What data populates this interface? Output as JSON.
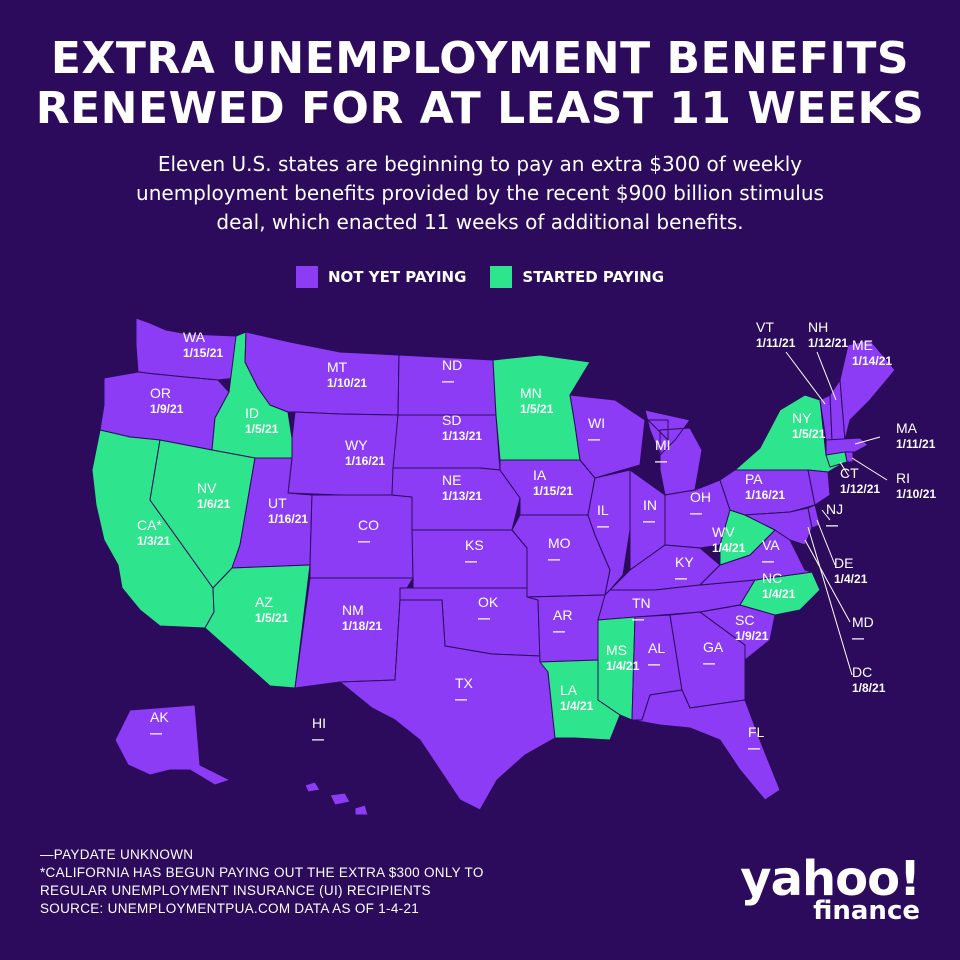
{
  "title": {
    "line1": "EXTRA UNEMPLOYMENT BENEFITS",
    "line2": "RENEWED FOR AT LEAST 11 WEEKS"
  },
  "subtitle": {
    "line1": "Eleven U.S. states are beginning to pay an extra $300 of weekly",
    "line2": "unemployment benefits provided by the recent $900 billion stimulus",
    "line3": "deal, which enacted 11 weeks of additional benefits."
  },
  "legend": {
    "not_yet_label": "NOT YET PAYING",
    "started_label": "STARTED PAYING"
  },
  "colors": {
    "background": "#2d0b5c",
    "not_yet_paying": "#8c3cf5",
    "started_paying": "#2ee58e",
    "border": "#2d0b5c",
    "text": "#ffffff"
  },
  "states": {
    "WA": {
      "name": "WA",
      "date": "1/15/21",
      "status": "not_yet"
    },
    "OR": {
      "name": "OR",
      "date": "1/9/21",
      "status": "not_yet"
    },
    "CA": {
      "name": "CA*",
      "date": "1/3/21",
      "status": "started"
    },
    "ID": {
      "name": "ID",
      "date": "1/5/21",
      "status": "started"
    },
    "NV": {
      "name": "NV",
      "date": "1/6/21",
      "status": "started"
    },
    "MT": {
      "name": "MT",
      "date": "1/10/21",
      "status": "not_yet"
    },
    "WY": {
      "name": "WY",
      "date": "1/16/21",
      "status": "not_yet"
    },
    "UT": {
      "name": "UT",
      "date": "1/16/21",
      "status": "not_yet"
    },
    "AZ": {
      "name": "AZ",
      "date": "1/5/21",
      "status": "started"
    },
    "CO": {
      "name": "CO",
      "date": "—",
      "status": "not_yet"
    },
    "NM": {
      "name": "NM",
      "date": "1/18/21",
      "status": "not_yet"
    },
    "ND": {
      "name": "ND",
      "date": "—",
      "status": "not_yet"
    },
    "SD": {
      "name": "SD",
      "date": "1/13/21",
      "status": "not_yet"
    },
    "NE": {
      "name": "NE",
      "date": "1/13/21",
      "status": "not_yet"
    },
    "KS": {
      "name": "KS",
      "date": "—",
      "status": "not_yet"
    },
    "OK": {
      "name": "OK",
      "date": "—",
      "status": "not_yet"
    },
    "TX": {
      "name": "TX",
      "date": "—",
      "status": "not_yet"
    },
    "MN": {
      "name": "MN",
      "date": "1/5/21",
      "status": "started"
    },
    "IA": {
      "name": "IA",
      "date": "1/15/21",
      "status": "not_yet"
    },
    "MO": {
      "name": "MO",
      "date": "—",
      "status": "not_yet"
    },
    "AR": {
      "name": "AR",
      "date": "—",
      "status": "not_yet"
    },
    "LA": {
      "name": "LA",
      "date": "1/4/21",
      "status": "started"
    },
    "WI": {
      "name": "WI",
      "date": "—",
      "status": "not_yet"
    },
    "IL": {
      "name": "IL",
      "date": "—",
      "status": "not_yet"
    },
    "MI": {
      "name": "MI",
      "date": "—",
      "status": "not_yet"
    },
    "IN": {
      "name": "IN",
      "date": "—",
      "status": "not_yet"
    },
    "OH": {
      "name": "OH",
      "date": "—",
      "status": "not_yet"
    },
    "KY": {
      "name": "KY",
      "date": "—",
      "status": "not_yet"
    },
    "TN": {
      "name": "TN",
      "date": "—",
      "status": "not_yet"
    },
    "MS": {
      "name": "MS",
      "date": "1/4/21",
      "status": "started"
    },
    "AL": {
      "name": "AL",
      "date": "—",
      "status": "not_yet"
    },
    "GA": {
      "name": "GA",
      "date": "—",
      "status": "not_yet"
    },
    "FL": {
      "name": "FL",
      "date": "—",
      "status": "not_yet"
    },
    "SC": {
      "name": "SC",
      "date": "1/9/21",
      "status": "not_yet"
    },
    "NC": {
      "name": "NC",
      "date": "1/4/21",
      "status": "started"
    },
    "VA": {
      "name": "VA",
      "date": "—",
      "status": "not_yet"
    },
    "WV": {
      "name": "WV",
      "date": "1/4/21",
      "status": "started"
    },
    "PA": {
      "name": "PA",
      "date": "1/16/21",
      "status": "not_yet"
    },
    "NY": {
      "name": "NY",
      "date": "1/5/21",
      "status": "started"
    },
    "VT": {
      "name": "VT",
      "date": "1/11/21",
      "status": "not_yet"
    },
    "NH": {
      "name": "NH",
      "date": "1/12/21",
      "status": "not_yet"
    },
    "ME": {
      "name": "ME",
      "date": "1/14/21",
      "status": "not_yet"
    },
    "MA": {
      "name": "MA",
      "date": "1/11/21",
      "status": "not_yet"
    },
    "RI": {
      "name": "RI",
      "date": "1/10/21",
      "status": "not_yet"
    },
    "CT": {
      "name": "CT",
      "date": "1/12/21",
      "status": "started"
    },
    "NJ": {
      "name": "NJ",
      "date": "—",
      "status": "not_yet"
    },
    "DE": {
      "name": "DE",
      "date": "1/4/21",
      "status": "not_yet"
    },
    "MD": {
      "name": "MD",
      "date": "—",
      "status": "not_yet"
    },
    "DC": {
      "name": "DC",
      "date": "1/8/21",
      "status": "not_yet"
    },
    "AK": {
      "name": "AK",
      "date": "—",
      "status": "not_yet"
    },
    "HI": {
      "name": "HI",
      "date": "—",
      "status": "not_yet"
    }
  },
  "footnotes": {
    "line1": "—PAYDATE UNKNOWN",
    "line2": "*CALIFORNIA HAS BEGUN PAYING OUT THE EXTRA $300 ONLY TO",
    "line3": "REGULAR UNEMPLOYMENT INSURANCE (UI) RECIPIENTS",
    "line4": "SOURCE:  UNEMPLOYMENTPUA.COM    DATA AS OF 1-4-21"
  },
  "brand": {
    "name": "yahoo!",
    "sub": "finance"
  }
}
